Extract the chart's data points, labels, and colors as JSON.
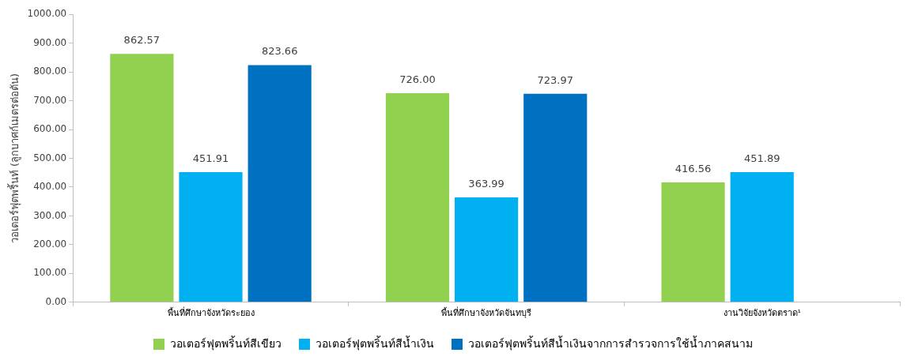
{
  "chart_data": {
    "type": "bar",
    "ylabel": "วอเตอร์ฟุตพริ้นท์ (ลูกบาศก์เมตรต่อตัน)",
    "categories": [
      "พื้นที่ศึกษาจังหวัดระยอง",
      "พื้นที่ศึกษาจังหวัดจันทบุรี",
      "งานวิจัยจังหวัดตราด¹"
    ],
    "series": [
      {
        "name": "วอเตอร์ฟุตพริ้นท์สีเขียว",
        "color": "#92d050",
        "values": [
          862.57,
          726.0,
          416.56
        ],
        "value_labels": [
          "862.57",
          "726.00",
          "416.56"
        ]
      },
      {
        "name": "วอเตอร์ฟุตพริ้นท์สีน้ำเงิน",
        "color": "#00b0f0",
        "values": [
          451.91,
          363.99,
          451.89
        ],
        "value_labels": [
          "451.91",
          "363.99",
          "451.89"
        ]
      },
      {
        "name": "วอเตอร์ฟุตพริ้นท์สีน้ำเงินจากการสำรวจการใช้น้ำภาคสนาม",
        "color": "#0070c0",
        "values": [
          823.66,
          723.97,
          null
        ],
        "value_labels": [
          "823.66",
          "723.97",
          null
        ]
      }
    ],
    "ylim": [
      0,
      1000
    ],
    "yticks": [
      {
        "value": 0,
        "label": "0.00"
      },
      {
        "value": 100,
        "label": "100.00"
      },
      {
        "value": 200,
        "label": "200.00"
      },
      {
        "value": 300,
        "label": "300.00"
      },
      {
        "value": 400,
        "label": "400.00"
      },
      {
        "value": 500,
        "label": "500.00"
      },
      {
        "value": 600,
        "label": "600.00"
      },
      {
        "value": 700,
        "label": "700.00"
      },
      {
        "value": 800,
        "label": "800.00"
      },
      {
        "value": 900,
        "label": "900.00"
      },
      {
        "value": 1000,
        "label": "1000.00"
      }
    ],
    "grid": false,
    "legend": "bottom"
  }
}
